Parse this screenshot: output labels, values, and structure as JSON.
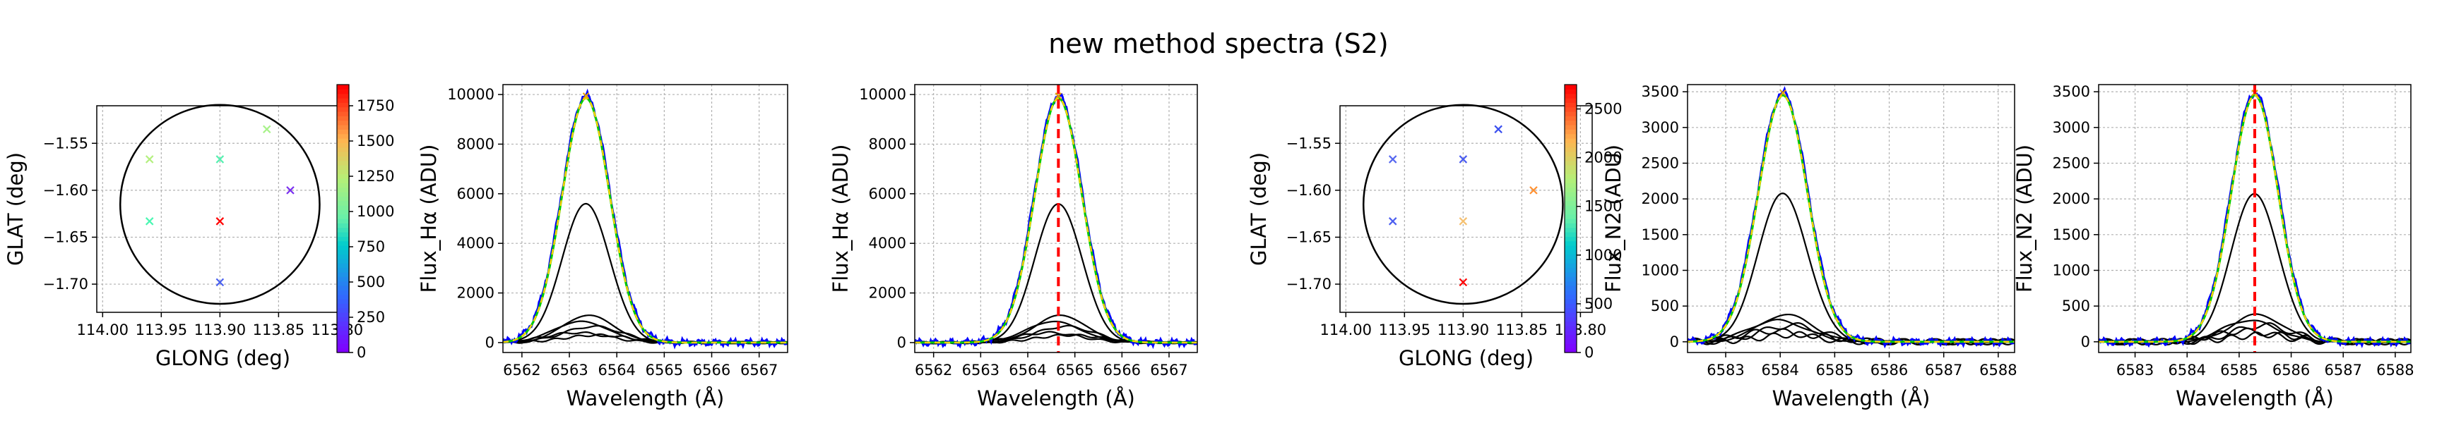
{
  "title": "new method spectra (S2)",
  "chart_data": [
    {
      "type": "scatter",
      "panel": "map-1",
      "xlabel": "GLONG (deg)",
      "ylabel": "GLAT (deg)",
      "xlim": [
        114.005,
        113.79
      ],
      "ylim": [
        -1.73,
        -1.51
      ],
      "xticks": [
        114.0,
        113.95,
        113.9,
        113.85,
        113.8
      ],
      "xtick_labels": [
        "114.00",
        "113.95",
        "113.90",
        "113.85",
        "113.80"
      ],
      "yticks": [
        -1.55,
        -1.6,
        -1.65,
        -1.7
      ],
      "ytick_labels": [
        "−1.55",
        "−1.60",
        "−1.65",
        "−1.70"
      ],
      "grid": true,
      "circle": {
        "center": [
          113.9,
          -1.615
        ],
        "radius": 0.085
      },
      "points": [
        {
          "x": 113.86,
          "y": -1.535,
          "value": 1000,
          "color": "#a8f28a"
        },
        {
          "x": 113.9,
          "y": -1.567,
          "value": 900,
          "color": "#55f0b0"
        },
        {
          "x": 113.96,
          "y": -1.567,
          "value": 1050,
          "color": "#b4f080"
        },
        {
          "x": 113.96,
          "y": -1.633,
          "value": 850,
          "color": "#4af7b2"
        },
        {
          "x": 113.9,
          "y": -1.633,
          "value": 1900,
          "color": "#ff0000"
        },
        {
          "x": 113.84,
          "y": -1.6,
          "value": 100,
          "color": "#7a2ff0"
        },
        {
          "x": 113.9,
          "y": -1.698,
          "value": 250,
          "color": "#4a60f0"
        }
      ],
      "colorbar": {
        "min": 0,
        "max": 1900,
        "ticks": [
          0,
          250,
          500,
          750,
          1000,
          1250,
          1500,
          1750
        ]
      }
    },
    {
      "type": "line",
      "panel": "spectra-1",
      "xlabel": "Wavelength (Å)",
      "ylabel": "Flux_Hα (ADU)",
      "xlim": [
        6561.6,
        6567.6
      ],
      "ylim": [
        -400,
        10400
      ],
      "xticks": [
        6562,
        6563,
        6564,
        6565,
        6566,
        6567
      ],
      "yticks": [
        0,
        2000,
        4000,
        6000,
        8000,
        10000
      ],
      "grid": true,
      "center": 6563.35,
      "width": 0.5,
      "component_amplitudes": [
        5600,
        1100,
        850,
        650,
        400,
        300
      ],
      "total_amplitude": 9850,
      "observed_color": "#0000ff",
      "model_color": "#00cc00",
      "model2_color": "#ffd000",
      "vline": null
    },
    {
      "type": "line",
      "panel": "spectra-2",
      "xlabel": "Wavelength (Å)",
      "ylabel": "Flux_Hα (ADU)",
      "xlim": [
        6561.6,
        6567.6
      ],
      "ylim": [
        -400,
        10400
      ],
      "xticks": [
        6562,
        6563,
        6564,
        6565,
        6566,
        6567
      ],
      "yticks": [
        0,
        2000,
        4000,
        6000,
        8000,
        10000
      ],
      "grid": true,
      "center": 6564.65,
      "width": 0.5,
      "component_amplitudes": [
        5600,
        1100,
        850,
        650,
        400,
        300
      ],
      "total_amplitude": 9850,
      "observed_color": "#0000ff",
      "model_color": "#00cc00",
      "model2_color": "#ffd000",
      "vline": 6564.65
    },
    {
      "type": "scatter",
      "panel": "map-2",
      "xlabel": "GLONG (deg)",
      "ylabel": "GLAT (deg)",
      "xlim": [
        114.005,
        113.79
      ],
      "ylim": [
        -1.73,
        -1.51
      ],
      "xticks": [
        114.0,
        113.95,
        113.9,
        113.85,
        113.8
      ],
      "xtick_labels": [
        "114.00",
        "113.95",
        "113.90",
        "113.85",
        "113.80"
      ],
      "yticks": [
        -1.55,
        -1.6,
        -1.65,
        -1.7
      ],
      "ytick_labels": [
        "−1.55",
        "−1.60",
        "−1.65",
        "−1.70"
      ],
      "grid": true,
      "circle": {
        "center": [
          113.9,
          -1.615
        ],
        "radius": 0.085
      },
      "points": [
        {
          "x": 113.87,
          "y": -1.535,
          "value": 300,
          "color": "#3a4fef"
        },
        {
          "x": 113.9,
          "y": -1.567,
          "value": 350,
          "color": "#4a5cf0"
        },
        {
          "x": 113.96,
          "y": -1.567,
          "value": 380,
          "color": "#5668f0"
        },
        {
          "x": 113.96,
          "y": -1.633,
          "value": 360,
          "color": "#4c5ef0"
        },
        {
          "x": 113.9,
          "y": -1.633,
          "value": 1800,
          "color": "#f5c070"
        },
        {
          "x": 113.84,
          "y": -1.6,
          "value": 2000,
          "color": "#ff9030"
        },
        {
          "x": 113.9,
          "y": -1.698,
          "value": 2700,
          "color": "#ff0000"
        }
      ],
      "colorbar": {
        "min": 0,
        "max": 2750,
        "ticks": [
          0,
          500,
          1000,
          1500,
          2000,
          2500
        ]
      }
    },
    {
      "type": "line",
      "panel": "spectra-3",
      "xlabel": "Wavelength (Å)",
      "ylabel": "Flux_N2 (ADU)",
      "xlim": [
        6582.3,
        6588.3
      ],
      "ylim": [
        -150,
        3600
      ],
      "xticks": [
        6583,
        6584,
        6585,
        6586,
        6587,
        6588
      ],
      "yticks": [
        0,
        500,
        1000,
        1500,
        2000,
        2500,
        3000,
        3500
      ],
      "grid": true,
      "center": 6584.05,
      "width": 0.45,
      "component_amplitudes": [
        2080,
        380,
        300,
        230,
        150,
        100
      ],
      "total_amplitude": 3450,
      "observed_color": "#0000ff",
      "model_color": "#00cc00",
      "model2_color": "#ffd000",
      "vline": null
    },
    {
      "type": "line",
      "panel": "spectra-4",
      "xlabel": "Wavelength (Å)",
      "ylabel": "Flux_N2 (ADU)",
      "xlim": [
        6582.3,
        6588.3
      ],
      "ylim": [
        -150,
        3600
      ],
      "xticks": [
        6583,
        6584,
        6585,
        6586,
        6587,
        6588
      ],
      "yticks": [
        0,
        500,
        1000,
        1500,
        2000,
        2500,
        3000,
        3500
      ],
      "grid": true,
      "center": 6585.3,
      "width": 0.45,
      "component_amplitudes": [
        2080,
        380,
        300,
        230,
        150,
        100
      ],
      "total_amplitude": 3450,
      "observed_color": "#0000ff",
      "model_color": "#00cc00",
      "model2_color": "#ffd000",
      "vline": 6585.3
    }
  ]
}
